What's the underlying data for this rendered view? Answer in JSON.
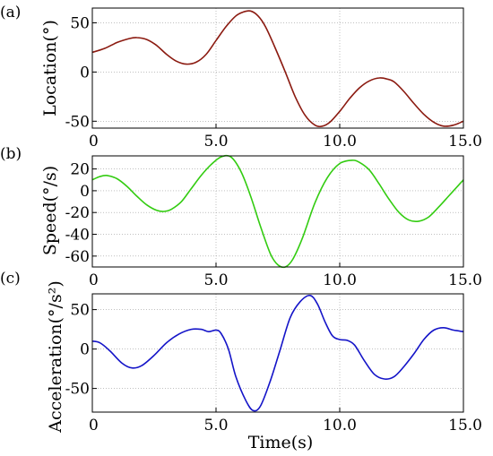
{
  "figure": {
    "xlabel": "Time(s)"
  },
  "chart_data": [
    {
      "type": "line",
      "panel_label": "(a)",
      "ylabel": "Location(°)",
      "xlim": [
        0,
        15
      ],
      "ylim": [
        -57,
        65
      ],
      "xticks": [
        0,
        5,
        10,
        15
      ],
      "xtick_labels": [
        "0",
        "5.0",
        "10.0",
        "15.0"
      ],
      "yticks": [
        50,
        0,
        -50
      ],
      "ytick_labels": [
        "50",
        "0",
        "-50"
      ],
      "grid": true,
      "series": [
        {
          "color": "#8b1a10",
          "x": [
            0,
            0.5,
            1.0,
            1.5,
            1.8,
            2.2,
            2.6,
            3.0,
            3.4,
            3.8,
            4.2,
            4.6,
            5.0,
            5.4,
            5.8,
            6.1,
            6.4,
            6.7,
            7.0,
            7.4,
            7.8,
            8.2,
            8.6,
            9.0,
            9.3,
            9.6,
            10.0,
            10.4,
            10.8,
            11.2,
            11.6,
            11.9,
            12.2,
            12.6,
            13.0,
            13.4,
            13.8,
            14.2,
            14.6,
            15.0
          ],
          "y": [
            20,
            24,
            30,
            34,
            35,
            33,
            27,
            18,
            11,
            8,
            10,
            18,
            32,
            46,
            57,
            61,
            62,
            57,
            46,
            24,
            0,
            -25,
            -44,
            -54,
            -55,
            -51,
            -40,
            -27,
            -16,
            -9,
            -6,
            -7,
            -10,
            -20,
            -32,
            -43,
            -51,
            -55,
            -54,
            -50
          ]
        }
      ]
    },
    {
      "type": "line",
      "panel_label": "(b)",
      "ylabel": "Speed(°/s)",
      "xlim": [
        0,
        15
      ],
      "ylim": [
        -70,
        32
      ],
      "xticks": [
        0,
        5,
        10,
        15
      ],
      "xtick_labels": [
        "0",
        "5.0",
        "10.0",
        "15.0"
      ],
      "yticks": [
        20,
        0,
        -20,
        -40,
        -60
      ],
      "ytick_labels": [
        "20",
        "0",
        "-20",
        "-40",
        "-60"
      ],
      "grid": true,
      "series": [
        {
          "color": "#33cc11",
          "x": [
            0,
            0.3,
            0.6,
            1.0,
            1.4,
            1.8,
            2.2,
            2.6,
            2.9,
            3.2,
            3.6,
            4.0,
            4.4,
            4.8,
            5.2,
            5.6,
            6.0,
            6.4,
            6.8,
            7.2,
            7.5,
            7.8,
            8.1,
            8.5,
            9.0,
            9.5,
            10.0,
            10.5,
            10.8,
            11.2,
            11.6,
            12.0,
            12.4,
            12.8,
            13.2,
            13.6,
            14.0,
            14.4,
            14.8,
            15.0
          ],
          "y": [
            10,
            13,
            14,
            11,
            4,
            -5,
            -13,
            -18,
            -19,
            -17,
            -10,
            2,
            14,
            24,
            31,
            31,
            18,
            -5,
            -33,
            -58,
            -68,
            -70,
            -63,
            -43,
            -11,
            12,
            25,
            28,
            26,
            19,
            6,
            -8,
            -20,
            -27,
            -28,
            -24,
            -15,
            -5,
            5,
            10
          ]
        }
      ]
    },
    {
      "type": "line",
      "panel_label": "(c)",
      "ylabel": "Acceleration(°/s²)",
      "xlim": [
        0,
        15
      ],
      "ylim": [
        -80,
        70
      ],
      "xticks": [
        0,
        5,
        10,
        15
      ],
      "xtick_labels": [
        "0",
        "5.0",
        "10.0",
        "15.0"
      ],
      "yticks": [
        50,
        0,
        -50
      ],
      "ytick_labels": [
        "50",
        "0",
        "-50"
      ],
      "grid": true,
      "series": [
        {
          "color": "#1414c8",
          "x": [
            0,
            0.3,
            0.7,
            1.2,
            1.6,
            2.0,
            2.5,
            3.0,
            3.5,
            4.0,
            4.4,
            4.7,
            5.0,
            5.2,
            5.5,
            5.8,
            6.2,
            6.5,
            6.8,
            7.2,
            7.6,
            8.0,
            8.4,
            8.8,
            9.1,
            9.4,
            9.7,
            10.0,
            10.3,
            10.6,
            11.0,
            11.4,
            11.8,
            12.2,
            12.6,
            13.0,
            13.4,
            13.8,
            14.2,
            14.6,
            15.0
          ],
          "y": [
            10,
            8,
            -2,
            -18,
            -24,
            -21,
            -8,
            8,
            19,
            25,
            25,
            22,
            24,
            20,
            0,
            -35,
            -65,
            -78,
            -72,
            -40,
            0,
            40,
            60,
            68,
            57,
            35,
            17,
            12,
            11,
            5,
            -15,
            -32,
            -38,
            -35,
            -22,
            -6,
            12,
            24,
            27,
            24,
            22
          ]
        }
      ]
    }
  ]
}
